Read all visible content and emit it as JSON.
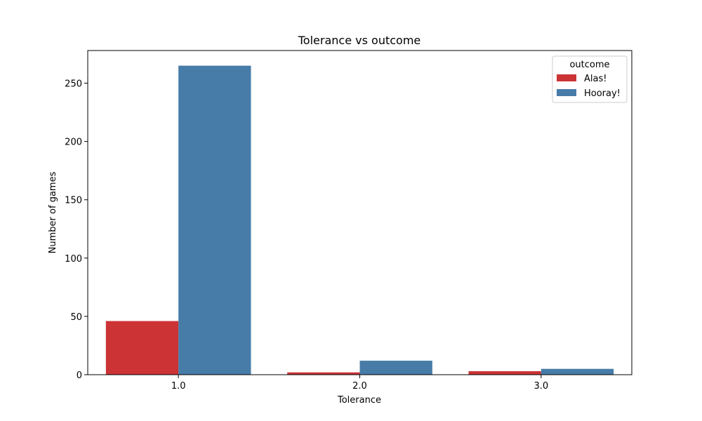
{
  "chart_data": {
    "type": "bar",
    "title": "Tolerance vs outcome",
    "xlabel": "Tolerance",
    "ylabel": "Number of games",
    "categories": [
      "1.0",
      "2.0",
      "3.0"
    ],
    "series": [
      {
        "name": "Alas!",
        "values": [
          46,
          2,
          3
        ],
        "color": "#cb3335"
      },
      {
        "name": "Hooray!",
        "values": [
          265,
          12,
          5
        ],
        "color": "#477ca8"
      }
    ],
    "ylim": [
      0,
      278
    ],
    "yticks": [
      0,
      50,
      100,
      150,
      200,
      250
    ],
    "legend": {
      "title": "outcome",
      "placement": "top-right"
    },
    "grid": false
  }
}
